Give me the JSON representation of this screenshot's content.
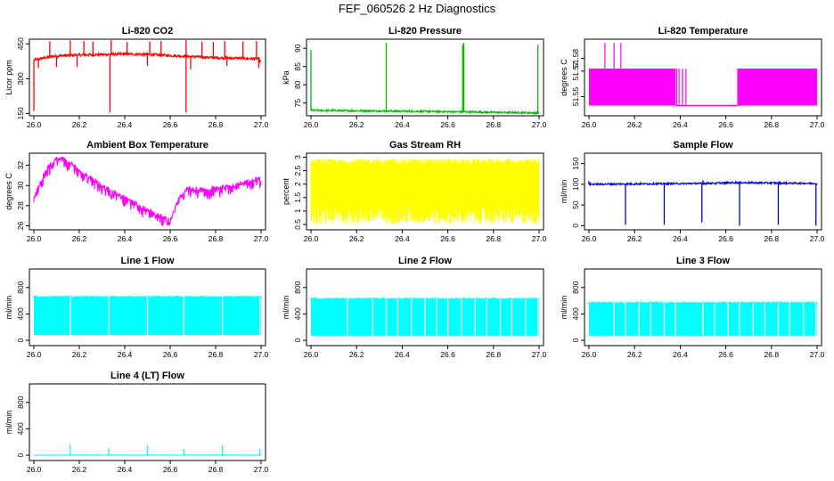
{
  "title": "FEF_060526  2 Hz Diagnostics",
  "chart_data": [
    {
      "type": "line",
      "title": "Li-820 CO2",
      "ylabel": "Licor ppm",
      "color": "#ff0000",
      "xlim": [
        26.0,
        27.0
      ],
      "xticks": [
        26.0,
        26.2,
        26.4,
        26.6,
        26.8,
        27.0
      ],
      "xticklabels": [
        "26.0",
        "26.2",
        "26.4",
        "26.6",
        "26.8",
        "27.0"
      ],
      "ylim": [
        140,
        470
      ],
      "yticks": [
        150,
        300,
        450
      ],
      "yticklabels": [
        "150",
        "300",
        "450"
      ],
      "baseline": [
        [
          26.0,
          380
        ],
        [
          26.05,
          390
        ],
        [
          26.1,
          398
        ],
        [
          26.2,
          402
        ],
        [
          26.3,
          404
        ],
        [
          26.4,
          406
        ],
        [
          26.5,
          404
        ],
        [
          26.6,
          400
        ],
        [
          26.7,
          395
        ],
        [
          26.8,
          390
        ],
        [
          26.9,
          388
        ],
        [
          26.99,
          385
        ],
        [
          27.0,
          368
        ]
      ],
      "noise": 6,
      "spikes": [
        [
          26.07,
          460
        ],
        [
          26.16,
          465
        ],
        [
          26.22,
          462
        ],
        [
          26.26,
          460
        ],
        [
          26.34,
          468
        ],
        [
          26.41,
          458
        ],
        [
          26.51,
          460
        ],
        [
          26.56,
          462
        ],
        [
          26.67,
          468
        ],
        [
          26.74,
          460
        ],
        [
          26.79,
          458
        ],
        [
          26.84,
          462
        ],
        [
          26.92,
          460
        ],
        [
          26.98,
          462
        ]
      ],
      "dips": [
        [
          26.0,
          160
        ],
        [
          26.02,
          345
        ],
        [
          26.1,
          350
        ],
        [
          26.19,
          350
        ],
        [
          26.335,
          155
        ],
        [
          26.5,
          355
        ],
        [
          26.67,
          155
        ],
        [
          26.69,
          340
        ],
        [
          26.85,
          355
        ],
        [
          26.99,
          345
        ]
      ]
    },
    {
      "type": "line",
      "title": "Li-820 Pressure",
      "ylabel": "kPa",
      "color": "#00bb00",
      "xlim": [
        26.0,
        27.0
      ],
      "xticks": [
        26.0,
        26.2,
        26.4,
        26.6,
        26.8,
        27.0
      ],
      "xticklabels": [
        "26.0",
        "26.2",
        "26.4",
        "26.6",
        "26.8",
        "27.0"
      ],
      "ylim": [
        71.5,
        92.5
      ],
      "yticks": [
        75,
        80,
        85,
        90
      ],
      "yticklabels": [
        "75",
        "80",
        "85",
        "90"
      ],
      "baseline": [
        [
          26.0,
          73.0
        ],
        [
          26.5,
          72.7
        ],
        [
          27.0,
          72.3
        ]
      ],
      "noise": 0.25,
      "spikes": [
        [
          26.0,
          89.5
        ],
        [
          26.33,
          91.5
        ],
        [
          26.665,
          91.0
        ],
        [
          26.67,
          91.5
        ],
        [
          26.995,
          91.0
        ]
      ],
      "dips": []
    },
    {
      "type": "line",
      "title": "Li-820 Temperature",
      "ylabel": "degrees C",
      "color": "#ff00ff",
      "xlim": [
        26.0,
        27.0
      ],
      "xticks": [
        26.0,
        26.2,
        26.4,
        26.6,
        26.8,
        27.0
      ],
      "xticklabels": [
        "26.0",
        "26.2",
        "26.4",
        "26.6",
        "26.8",
        "27.0"
      ],
      "ylim": [
        51.535,
        51.595
      ],
      "yticks": [
        51.55,
        51.57,
        51.58
      ],
      "yticklabels": [
        "51.55",
        "51.57",
        "51.58"
      ],
      "bands": [
        [
          26.0,
          26.38,
          51.543,
          51.572
        ],
        [
          26.65,
          27.0,
          51.543,
          51.572
        ]
      ],
      "low_level": 51.543,
      "verticals": [
        [
          26.07,
          51.543,
          51.592
        ],
        [
          26.11,
          51.543,
          51.592
        ],
        [
          26.14,
          51.543,
          51.592
        ],
        [
          26.385,
          51.543,
          51.572
        ],
        [
          26.395,
          51.543,
          51.572
        ],
        [
          26.41,
          51.543,
          51.572
        ],
        [
          26.425,
          51.543,
          51.572
        ]
      ]
    },
    {
      "type": "line",
      "title": "Ambient Box Temperature",
      "ylabel": "degrees C",
      "color": "#ff00ff",
      "xlim": [
        26.0,
        27.0
      ],
      "xticks": [
        26.0,
        26.2,
        26.4,
        26.6,
        26.8,
        27.0
      ],
      "xticklabels": [
        "26.0",
        "26.2",
        "26.4",
        "26.6",
        "26.8",
        "27.0"
      ],
      "ylim": [
        25.6,
        33.2
      ],
      "yticks": [
        26,
        28,
        30,
        32
      ],
      "yticklabels": [
        "26",
        "28",
        "30",
        "32"
      ],
      "baseline": [
        [
          26.0,
          28.8
        ],
        [
          26.05,
          31.5
        ],
        [
          26.1,
          32.7
        ],
        [
          26.13,
          32.7
        ],
        [
          26.2,
          31.6
        ],
        [
          26.3,
          30.0
        ],
        [
          26.4,
          28.8
        ],
        [
          26.5,
          27.6
        ],
        [
          26.58,
          26.8
        ],
        [
          26.6,
          26.5
        ],
        [
          26.64,
          28.8
        ],
        [
          26.68,
          29.8
        ],
        [
          26.75,
          29.6
        ],
        [
          26.85,
          29.9
        ],
        [
          26.95,
          30.4
        ],
        [
          27.0,
          30.8
        ]
      ],
      "noise": 0.2,
      "dip_depth": 0.9,
      "dip_every": 0.012
    },
    {
      "type": "line",
      "title": "Gas Stream RH",
      "ylabel": "percent",
      "color": "#ffff00",
      "xlim": [
        26.0,
        27.0
      ],
      "xticks": [
        26.0,
        26.2,
        26.4,
        26.6,
        26.8,
        27.0
      ],
      "xticklabels": [
        "26.0",
        "26.2",
        "26.4",
        "26.6",
        "26.8",
        "27.0"
      ],
      "ylim": [
        0.3,
        3.15
      ],
      "yticks": [
        0.5,
        1.0,
        1.5,
        2.0,
        2.5,
        3.0
      ],
      "yticklabels": [
        "0.5",
        "1",
        "1.5",
        "2",
        "2.5",
        "3"
      ],
      "range_low": 0.5,
      "range_high": 2.95,
      "core_low": 1.2,
      "core_high": 2.7
    },
    {
      "type": "line",
      "title": "Sample Flow",
      "ylabel": "ml/min",
      "color": "#0000dd",
      "xlim": [
        26.0,
        27.0
      ],
      "xticks": [
        26.0,
        26.2,
        26.4,
        26.6,
        26.8,
        27.0
      ],
      "xticklabels": [
        "26.0",
        "26.2",
        "26.4",
        "26.6",
        "26.8",
        "27.0"
      ],
      "ylim": [
        -10,
        175
      ],
      "yticks": [
        0,
        50,
        100,
        150
      ],
      "yticklabels": [
        "0",
        "50",
        "100",
        "150"
      ],
      "baseline": [
        [
          26.0,
          100
        ],
        [
          26.5,
          102
        ],
        [
          26.65,
          104
        ],
        [
          27.0,
          102
        ]
      ],
      "noise": 2,
      "dips": [
        [
          26.16,
          2
        ],
        [
          26.33,
          2
        ],
        [
          26.495,
          8
        ],
        [
          26.66,
          0
        ],
        [
          26.83,
          2
        ],
        [
          26.995,
          0
        ]
      ],
      "spikes": [
        [
          26.5,
          110
        ],
        [
          26.0,
          108
        ]
      ]
    },
    {
      "type": "area",
      "title": "Line 1 Flow",
      "ylabel": "ml/min",
      "color": "#00ffff",
      "xlim": [
        26.0,
        27.0
      ],
      "xticks": [
        26.0,
        26.2,
        26.4,
        26.6,
        26.8,
        27.0
      ],
      "xticklabels": [
        "26.0",
        "26.2",
        "26.4",
        "26.6",
        "26.8",
        "27.0"
      ],
      "ylim": [
        -80,
        1080
      ],
      "yticks": [
        0,
        400,
        800
      ],
      "yticklabels": [
        "0",
        "400",
        "800"
      ],
      "top": 650,
      "bottom": 80,
      "gaps": [
        26.16,
        26.33,
        26.5,
        26.66,
        26.83,
        26.995
      ]
    },
    {
      "type": "area",
      "title": "Line 2 Flow",
      "ylabel": "ml/min",
      "color": "#00ffff",
      "xlim": [
        26.0,
        27.0
      ],
      "xticks": [
        26.0,
        26.2,
        26.4,
        26.6,
        26.8,
        27.0
      ],
      "xticklabels": [
        "26.0",
        "26.2",
        "26.4",
        "26.6",
        "26.8",
        "27.0"
      ],
      "ylim": [
        -80,
        1080
      ],
      "yticks": [
        0,
        400,
        800
      ],
      "yticklabels": [
        "0",
        "400",
        "800"
      ],
      "top": 620,
      "bottom": 70,
      "gaps": [
        26.16,
        26.27,
        26.33,
        26.38,
        26.44,
        26.5,
        26.55,
        26.6,
        26.66,
        26.72,
        26.77,
        26.83,
        26.88,
        26.94,
        26.995
      ]
    },
    {
      "type": "area",
      "title": "Line 3 Flow",
      "ylabel": "ml/min",
      "color": "#00ffff",
      "xlim": [
        26.0,
        27.0
      ],
      "xticks": [
        26.0,
        26.2,
        26.4,
        26.6,
        26.8,
        27.0
      ],
      "xticklabels": [
        "26.0",
        "26.2",
        "26.4",
        "26.6",
        "26.8",
        "27.0"
      ],
      "ylim": [
        -80,
        1080
      ],
      "yticks": [
        0,
        400,
        800
      ],
      "yticklabels": [
        "0",
        "400",
        "800"
      ],
      "top": 560,
      "bottom": 70,
      "gaps": [
        26.11,
        26.16,
        26.22,
        26.27,
        26.33,
        26.38,
        26.5,
        26.55,
        26.61,
        26.66,
        26.72,
        26.77,
        26.83,
        26.88,
        26.94,
        26.995
      ]
    },
    {
      "type": "line",
      "title": "Line 4 (LT) Flow",
      "ylabel": "ml/min",
      "color": "#00ffff",
      "xlim": [
        26.0,
        27.0
      ],
      "xticks": [
        26.0,
        26.2,
        26.4,
        26.6,
        26.8,
        27.0
      ],
      "xticklabels": [
        "26.0",
        "26.2",
        "26.4",
        "26.6",
        "26.8",
        "27.0"
      ],
      "ylim": [
        -80,
        1080
      ],
      "yticks": [
        0,
        400,
        800
      ],
      "yticklabels": [
        "0",
        "400",
        "800"
      ],
      "baseline": [
        [
          26.0,
          2
        ],
        [
          27.0,
          2
        ]
      ],
      "noise": 2,
      "spikes": [
        [
          26.16,
          160
        ],
        [
          26.33,
          110
        ],
        [
          26.5,
          150
        ],
        [
          26.66,
          100
        ],
        [
          26.83,
          150
        ],
        [
          26.995,
          100
        ]
      ],
      "dips": []
    }
  ]
}
